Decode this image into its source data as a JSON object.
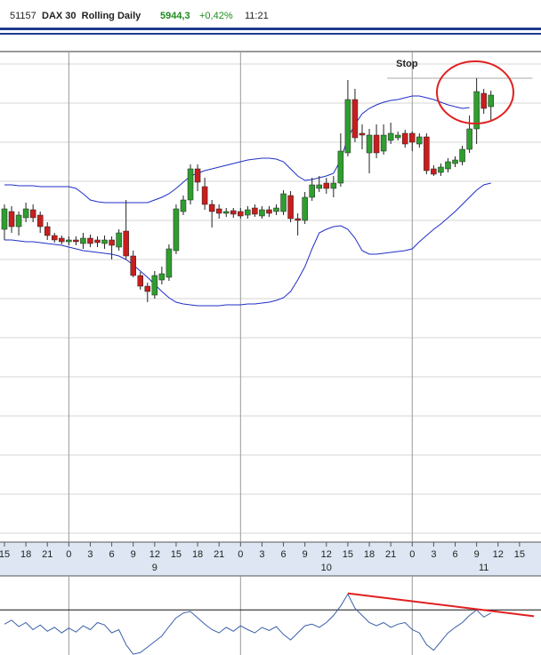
{
  "chart_data": {
    "type": "candlestick",
    "header": {
      "id": "51157",
      "title": "DAX 30  Rolling Daily",
      "last": "5944,3",
      "change": "+0,42%",
      "time": "11:21"
    },
    "x": [
      0,
      1,
      2,
      3,
      4,
      5,
      6,
      7,
      8,
      9,
      10,
      11,
      12,
      13,
      14,
      15,
      16,
      17,
      18,
      19,
      20,
      21,
      22,
      23,
      24,
      25,
      26,
      27,
      28,
      29,
      30,
      31,
      32,
      33,
      34,
      35,
      36,
      37,
      38,
      39,
      40,
      41,
      42,
      43,
      44,
      45,
      46,
      47,
      48,
      49,
      50,
      51,
      52,
      53,
      54,
      55,
      56,
      57,
      58,
      59,
      60,
      61,
      62,
      63,
      64,
      65,
      66,
      67,
      68
    ],
    "open": [
      5871,
      5881,
      5872.5,
      5877.5,
      5882,
      5879,
      5872.5,
      5867.5,
      5866,
      5864,
      5865,
      5863,
      5866,
      5865,
      5863,
      5865,
      5861,
      5870,
      5856,
      5845,
      5839,
      5834,
      5842.5,
      5844,
      5859,
      5881,
      5887.5,
      5905,
      5895,
      5885,
      5882.5,
      5880,
      5881.5,
      5881,
      5879,
      5883,
      5878.5,
      5882,
      5881,
      5881,
      5890,
      5877,
      5876,
      5889,
      5894,
      5897,
      5894,
      5897,
      5914,
      5944,
      5925,
      5914,
      5924,
      5915,
      5921,
      5922.5,
      5925,
      5925,
      5919,
      5923,
      5905,
      5903,
      5905,
      5908,
      5909,
      5916,
      5927.5,
      5947.5,
      5940
    ],
    "high": [
      5885,
      5884,
      5881,
      5886,
      5885,
      5881,
      5875,
      5869,
      5867.5,
      5867,
      5867,
      5869,
      5868,
      5867,
      5867.5,
      5867,
      5871,
      5887.5,
      5859,
      5847,
      5841,
      5847.5,
      5850,
      5862.5,
      5885,
      5890,
      5907.5,
      5907.5,
      5900,
      5887.5,
      5885,
      5883,
      5883,
      5883,
      5884,
      5885,
      5884,
      5884,
      5885,
      5893,
      5892.5,
      5880,
      5892,
      5900,
      5901,
      5900,
      5901,
      5925,
      5955,
      5950,
      5930,
      5927.5,
      5930,
      5930,
      5931,
      5926,
      5927,
      5926,
      5925,
      5925,
      5907,
      5908,
      5911,
      5912,
      5918,
      5935,
      5956,
      5950,
      5949
    ],
    "low": [
      5865,
      5869,
      5867.5,
      5875,
      5875,
      5869,
      5865,
      5863.5,
      5862.5,
      5862,
      5862,
      5860,
      5861,
      5861,
      5860,
      5854,
      5859,
      5854,
      5844,
      5837,
      5830,
      5832,
      5840,
      5842,
      5857,
      5879,
      5885,
      5892.5,
      5882,
      5872,
      5877,
      5878,
      5877.5,
      5877,
      5877,
      5878,
      5877,
      5878,
      5879,
      5879,
      5875,
      5867.5,
      5874,
      5887,
      5892,
      5891,
      5889,
      5895,
      5912,
      5920,
      5916,
      5902.5,
      5911,
      5913,
      5919,
      5921,
      5917,
      5915,
      5917,
      5902,
      5901,
      5901,
      5903,
      5906,
      5907,
      5914,
      5919,
      5936,
      5932.5
    ],
    "close": [
      5882.5,
      5872.5,
      5879,
      5882.5,
      5877.5,
      5872.5,
      5867.5,
      5865,
      5864,
      5865,
      5864,
      5866,
      5863,
      5863.5,
      5865,
      5862,
      5869,
      5856,
      5845,
      5839,
      5836,
      5845,
      5846,
      5860,
      5882.5,
      5887.5,
      5905,
      5897.5,
      5885,
      5881,
      5880,
      5881,
      5879.5,
      5878.5,
      5882,
      5879.5,
      5882,
      5880,
      5883,
      5891,
      5877,
      5876,
      5889,
      5896,
      5896,
      5894,
      5897,
      5915,
      5944,
      5922.5,
      5924,
      5924,
      5914,
      5924,
      5925,
      5924,
      5919,
      5920,
      5923,
      5904,
      5902,
      5906,
      5909,
      5910,
      5916,
      5927.5,
      5948.5,
      5939,
      5946.5
    ],
    "up_color": "#2f9e2f",
    "down_color": "#c81e1e",
    "bands": {
      "color": "#1f2fc8",
      "upper": [
        5896,
        5896,
        5895.5,
        5895.5,
        5895.5,
        5895,
        5895,
        5895,
        5895,
        5895,
        5894,
        5891,
        5887.5,
        5886.5,
        5886,
        5886,
        5886,
        5886,
        5886,
        5886,
        5886,
        5887.5,
        5889,
        5891,
        5894,
        5897.5,
        5901,
        5902.5,
        5904,
        5905,
        5906,
        5907,
        5908,
        5909,
        5910,
        5910.5,
        5911,
        5911,
        5910.5,
        5909,
        5905,
        5901,
        5898.5,
        5899,
        5900,
        5901,
        5902.5,
        5910,
        5922.5,
        5930,
        5936,
        5939,
        5941,
        5942.5,
        5943.5,
        5944,
        5945,
        5946,
        5946,
        5945,
        5944,
        5942.5,
        5941,
        5940,
        5939,
        5939.5,
        null,
        null,
        null
      ],
      "lower": [
        5865,
        5865,
        5864.5,
        5864,
        5864,
        5863.5,
        5863,
        5862.5,
        5862,
        5861,
        5860,
        5859,
        5858.5,
        5858,
        5857.5,
        5857,
        5856,
        5854,
        5851,
        5847.5,
        5844,
        5840,
        5836,
        5832.5,
        5830,
        5829,
        5828.5,
        5828,
        5828,
        5828,
        5828,
        5828.5,
        5828.5,
        5828.5,
        5829,
        5829,
        5829.5,
        5830,
        5831,
        5832.5,
        5836,
        5842.5,
        5850,
        5860,
        5869,
        5871,
        5872.5,
        5873,
        5871,
        5866,
        5859,
        5857,
        5857,
        5857.5,
        5858,
        5858.5,
        5859,
        5860,
        5864,
        5867.5,
        5871,
        5874,
        5877.5,
        5881,
        5885,
        5889,
        5893,
        5896,
        5897
      ]
    },
    "ylim": [
      5695,
      5971
    ],
    "ygrid": [
      5964,
      5942,
      5920,
      5898,
      5876,
      5854,
      5832,
      5810,
      5788,
      5766,
      5744,
      5722,
      5700
    ],
    "xlim": [
      -0.62,
      75
    ],
    "xgrid": [
      9,
      33,
      57
    ],
    "xticks": [
      {
        "value": 0,
        "label": "15"
      },
      {
        "value": 3,
        "label": "18"
      },
      {
        "value": 6,
        "label": "21"
      },
      {
        "value": 9,
        "label": "0"
      },
      {
        "value": 12,
        "label": "3"
      },
      {
        "value": 15,
        "label": "6"
      },
      {
        "value": 18,
        "label": "9"
      },
      {
        "value": 21,
        "label": "12"
      },
      {
        "value": 24,
        "label": "15"
      },
      {
        "value": 27,
        "label": "18"
      },
      {
        "value": 30,
        "label": "21"
      },
      {
        "value": 33,
        "label": "0"
      },
      {
        "value": 36,
        "label": "3"
      },
      {
        "value": 39,
        "label": "6"
      },
      {
        "value": 42,
        "label": "9"
      },
      {
        "value": 45,
        "label": "12"
      },
      {
        "value": 48,
        "label": "15"
      },
      {
        "value": 51,
        "label": "18"
      },
      {
        "value": 54,
        "label": "21"
      },
      {
        "value": 57,
        "label": "0"
      },
      {
        "value": 60,
        "label": "3"
      },
      {
        "value": 63,
        "label": "6"
      },
      {
        "value": 66,
        "label": "9"
      },
      {
        "value": 69,
        "label": "12"
      },
      {
        "value": 72,
        "label": "15"
      }
    ],
    "day_labels": [
      {
        "value": 21,
        "label": "9"
      },
      {
        "value": 45,
        "label": "10"
      },
      {
        "value": 67,
        "label": "11"
      }
    ],
    "stop": {
      "label": "Stop",
      "value": 5956,
      "x": [
        53.5,
        73.8
      ]
    },
    "indicator": {
      "color": "#3a5fa8",
      "ylim": [
        0,
        100
      ],
      "level": 57,
      "values": [
        39,
        44,
        36,
        41,
        32,
        38,
        30,
        35,
        28,
        34,
        29,
        37,
        32,
        41,
        38,
        28,
        32,
        13,
        1,
        3,
        10,
        17,
        24,
        36,
        47,
        53,
        55,
        47,
        39,
        32,
        28,
        35,
        30,
        37,
        32,
        28,
        35,
        31,
        36,
        26,
        19,
        28,
        37,
        39,
        35,
        41,
        50,
        62,
        77,
        59,
        50,
        41,
        37,
        41,
        35,
        39,
        41,
        32,
        28,
        13,
        6,
        17,
        28,
        35,
        41,
        50,
        57,
        48,
        53
      ],
      "trendline": {
        "color": "#e02020",
        "x": [
          48,
          74
        ],
        "values": [
          78,
          49
        ]
      }
    }
  }
}
